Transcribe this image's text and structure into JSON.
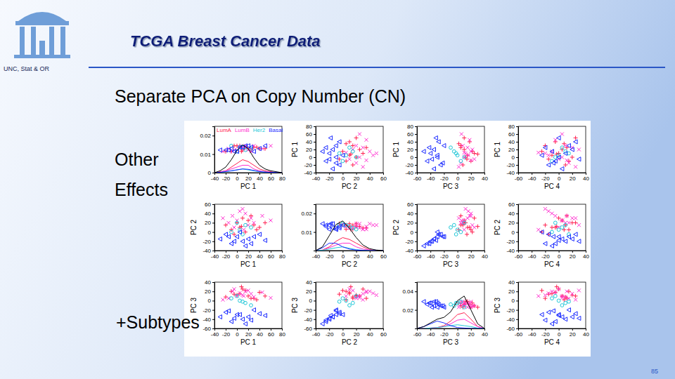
{
  "slide": {
    "title": "TCGA Breast Cancer Data",
    "affiliation": "UNC, Stat & OR",
    "heading": "Separate PCA on Copy Number (CN)",
    "side_text": [
      "Other",
      "Effects"
    ],
    "bottom_text": "+Subtypes",
    "page_number": "85"
  },
  "chart_data": {
    "type": "scatter_matrix",
    "legend": "top",
    "variables": [
      {
        "label": "PC 1",
        "lim": [
          -40,
          80
        ],
        "ticks": [
          -40,
          -20,
          0,
          20,
          40,
          60,
          80
        ],
        "density": {
          "ylim": [
            0,
            0.025
          ],
          "yticks": [
            0,
            0.01,
            0.02
          ],
          "color": "#000000",
          "x": [
            -40,
            -30,
            -20,
            -10,
            0,
            10,
            20,
            30,
            40,
            50,
            60,
            70,
            80
          ],
          "overall": [
            0,
            0.001,
            0.003,
            0.007,
            0.012,
            0.015,
            0.013,
            0.008,
            0.004,
            0.002,
            0.001,
            0.0005,
            0
          ],
          "values": [
            [
              0,
              0.0005,
              0.001,
              0.003,
              0.005,
              0.007,
              0.006,
              0.004,
              0.002,
              0.001,
              0.0005,
              0,
              0
            ],
            [
              0,
              0.0003,
              0.001,
              0.002,
              0.003,
              0.004,
              0.004,
              0.002,
              0.001,
              0.0005,
              0.0002,
              0,
              0
            ],
            [
              0,
              0,
              0.0005,
              0.001,
              0.0015,
              0.002,
              0.0015,
              0.001,
              0.0005,
              0.0003,
              0,
              0,
              0
            ],
            [
              0,
              0.0002,
              0.0006,
              0.001,
              0.0015,
              0.002,
              0.0018,
              0.0012,
              0.0006,
              0.0003,
              0.0002,
              0.0001,
              0
            ]
          ]
        }
      },
      {
        "label": "PC 2",
        "lim": [
          -40,
          60
        ],
        "ticks": [
          -40,
          -20,
          0,
          20,
          40,
          60
        ],
        "density": {
          "ylim": [
            0,
            0.025
          ],
          "yticks": [
            0.01,
            0.02
          ],
          "color": "#000000",
          "x": [
            -40,
            -30,
            -20,
            -10,
            0,
            10,
            20,
            30,
            40,
            50,
            60
          ],
          "overall": [
            0,
            0.002,
            0.008,
            0.014,
            0.016,
            0.012,
            0.007,
            0.003,
            0.001,
            0.0003,
            0
          ],
          "values": [
            [
              0,
              0.0003,
              0.002,
              0.005,
              0.007,
              0.006,
              0.004,
              0.002,
              0.0005,
              0.0001,
              0
            ],
            [
              0,
              0.0002,
              0.0015,
              0.003,
              0.004,
              0.004,
              0.002,
              0.0008,
              0.0003,
              0,
              0
            ],
            [
              0,
              0.0002,
              0.0008,
              0.0015,
              0.002,
              0.0012,
              0.0005,
              0.0002,
              0,
              0,
              0
            ],
            [
              0,
              0.0015,
              0.004,
              0.004,
              0.002,
              0.0008,
              0.0003,
              0.0001,
              0,
              0,
              0
            ]
          ]
        }
      },
      {
        "label": "PC 3",
        "lim": [
          -60,
          40
        ],
        "ticks": [
          -60,
          -40,
          -20,
          0,
          20,
          40
        ],
        "density": {
          "ylim": [
            0,
            0.05
          ],
          "yticks": [
            0.02,
            0.04
          ],
          "color": "#000000",
          "x": [
            -60,
            -50,
            -40,
            -30,
            -20,
            -10,
            0,
            10,
            20,
            30,
            40
          ],
          "overall": [
            0,
            0.002,
            0.006,
            0.01,
            0.012,
            0.018,
            0.03,
            0.035,
            0.02,
            0.005,
            0
          ],
          "values": [
            [
              0,
              0,
              0.0005,
              0.001,
              0.003,
              0.008,
              0.015,
              0.017,
              0.01,
              0.002,
              0
            ],
            [
              0,
              0,
              0.0003,
              0.001,
              0.002,
              0.005,
              0.009,
              0.01,
              0.006,
              0.002,
              0
            ],
            [
              0,
              0,
              0.0005,
              0.001,
              0.002,
              0.003,
              0.004,
              0.003,
              0.002,
              0.0005,
              0
            ],
            [
              0,
              0.002,
              0.005,
              0.008,
              0.006,
              0.003,
              0.001,
              0.0005,
              0,
              0,
              0
            ]
          ]
        }
      },
      {
        "label": "PC 4",
        "lim": [
          -60,
          40
        ],
        "ticks": [
          -60,
          -40,
          -20,
          0,
          20,
          40
        ]
      }
    ],
    "series": [
      {
        "name": "LumA",
        "color": "#ff2050",
        "marker": "plus",
        "points": [
          [
            5,
            10,
            15,
            -10
          ],
          [
            20,
            25,
            10,
            5
          ],
          [
            -10,
            5,
            20,
            15
          ],
          [
            30,
            15,
            5,
            -20
          ],
          [
            10,
            30,
            25,
            0
          ],
          [
            0,
            20,
            12,
            20
          ],
          [
            40,
            10,
            18,
            -5
          ],
          [
            -20,
            15,
            8,
            10
          ],
          [
            15,
            0,
            22,
            -25
          ],
          [
            25,
            35,
            5,
            12
          ],
          [
            -5,
            -5,
            14,
            -15
          ],
          [
            50,
            20,
            10,
            25
          ],
          [
            8,
            12,
            30,
            -3
          ],
          [
            35,
            5,
            2,
            8
          ]
        ]
      },
      {
        "name": "LumB",
        "color": "#ff30d0",
        "marker": "x",
        "points": [
          [
            0,
            25,
            10,
            5
          ],
          [
            15,
            40,
            20,
            -10
          ],
          [
            -15,
            20,
            5,
            15
          ],
          [
            25,
            30,
            15,
            20
          ],
          [
            10,
            50,
            12,
            -20
          ],
          [
            -5,
            10,
            25,
            0
          ],
          [
            30,
            20,
            8,
            10
          ],
          [
            45,
            35,
            18,
            -5
          ],
          [
            -25,
            30,
            2,
            25
          ],
          [
            5,
            45,
            16,
            -15
          ],
          [
            20,
            15,
            22,
            30
          ],
          [
            60,
            25,
            6,
            5
          ],
          [
            12,
            5,
            10,
            -30
          ],
          [
            -8,
            35,
            20,
            12
          ]
        ]
      },
      {
        "name": "Her2",
        "color": "#20c8d8",
        "marker": "circle",
        "points": [
          [
            5,
            5,
            0,
            0
          ],
          [
            15,
            15,
            -5,
            10
          ],
          [
            -10,
            0,
            5,
            -10
          ],
          [
            25,
            10,
            -10,
            5
          ],
          [
            0,
            20,
            10,
            -5
          ],
          [
            10,
            -5,
            -2,
            15
          ]
        ]
      },
      {
        "name": "Basal",
        "color": "#1c2cff",
        "marker": "triangle-left",
        "points": [
          [
            0,
            -10,
            -30,
            0
          ],
          [
            10,
            -20,
            -40,
            10
          ],
          [
            -20,
            -5,
            -25,
            -15
          ],
          [
            20,
            -15,
            -35,
            20
          ],
          [
            -10,
            -25,
            -45,
            -5
          ],
          [
            30,
            -10,
            -20,
            15
          ],
          [
            5,
            0,
            -30,
            -25
          ],
          [
            -30,
            -15,
            -35,
            5
          ],
          [
            15,
            -30,
            -50,
            -10
          ],
          [
            40,
            -5,
            -28,
            25
          ],
          [
            -5,
            -20,
            -38,
            30
          ],
          [
            25,
            -25,
            -42,
            -20
          ],
          [
            -15,
            -10,
            -22,
            -8
          ],
          [
            50,
            -18,
            -32,
            0
          ]
        ]
      }
    ]
  }
}
